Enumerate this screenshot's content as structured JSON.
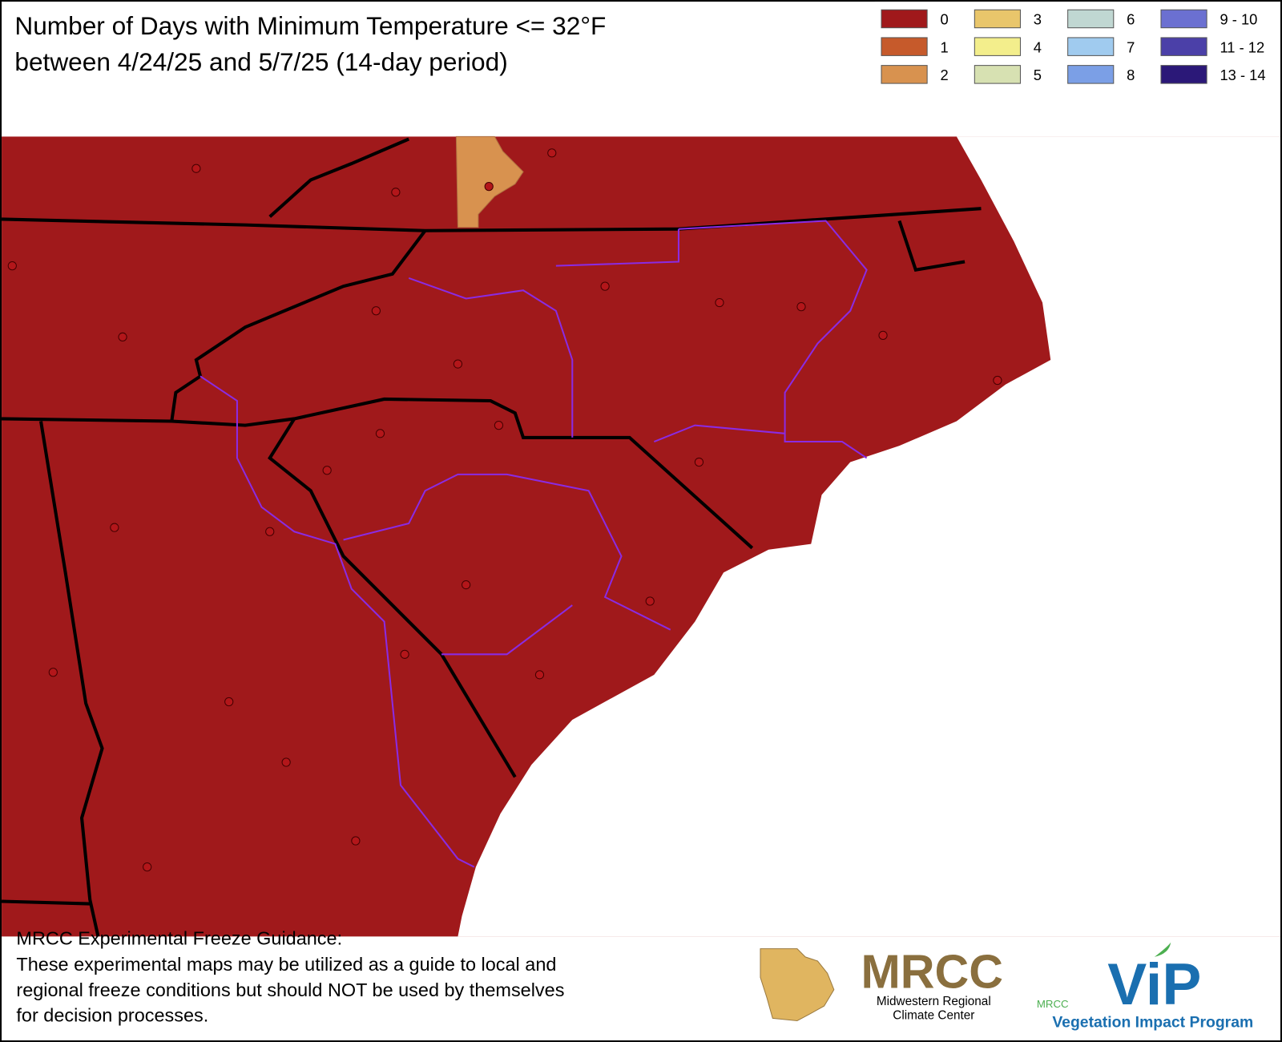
{
  "header": {
    "title_lines": [
      "Number of Days with Minimum Temperature <= 32°F",
      "between 4/24/25 and 5/7/25 (14-day period)"
    ]
  },
  "legend": {
    "items": [
      {
        "label": "0",
        "color": "#a0191b"
      },
      {
        "label": "1",
        "color": "#c65a2b"
      },
      {
        "label": "2",
        "color": "#d8924f"
      },
      {
        "label": "3",
        "color": "#e9c66b"
      },
      {
        "label": "4",
        "color": "#f3ee8c"
      },
      {
        "label": "5",
        "color": "#d7e1b2"
      },
      {
        "label": "6",
        "color": "#c0d7d2"
      },
      {
        "label": "7",
        "color": "#a0cbef"
      },
      {
        "label": "8",
        "color": "#7b9fe6"
      },
      {
        "label": "9 - 10",
        "color": "#6b70d1"
      },
      {
        "label": "11 - 12",
        "color": "#4b40a8"
      },
      {
        "label": "13 - 14",
        "color": "#2b1878"
      }
    ]
  },
  "footer": {
    "lines": [
      "MRCC Experimental Freeze Guidance:",
      "These experimental maps may be utilized as a guide to local and",
      "regional freeze conditions but should NOT be used by themselves",
      "for decision processes."
    ]
  },
  "logos": {
    "mrcc": {
      "name": "MRCC",
      "subtitle_lines": [
        "Midwestern Regional",
        "Climate Center"
      ]
    },
    "vip": {
      "small": "MRCC",
      "name": "ViP",
      "program": "Vegetation Impact Program"
    }
  }
}
